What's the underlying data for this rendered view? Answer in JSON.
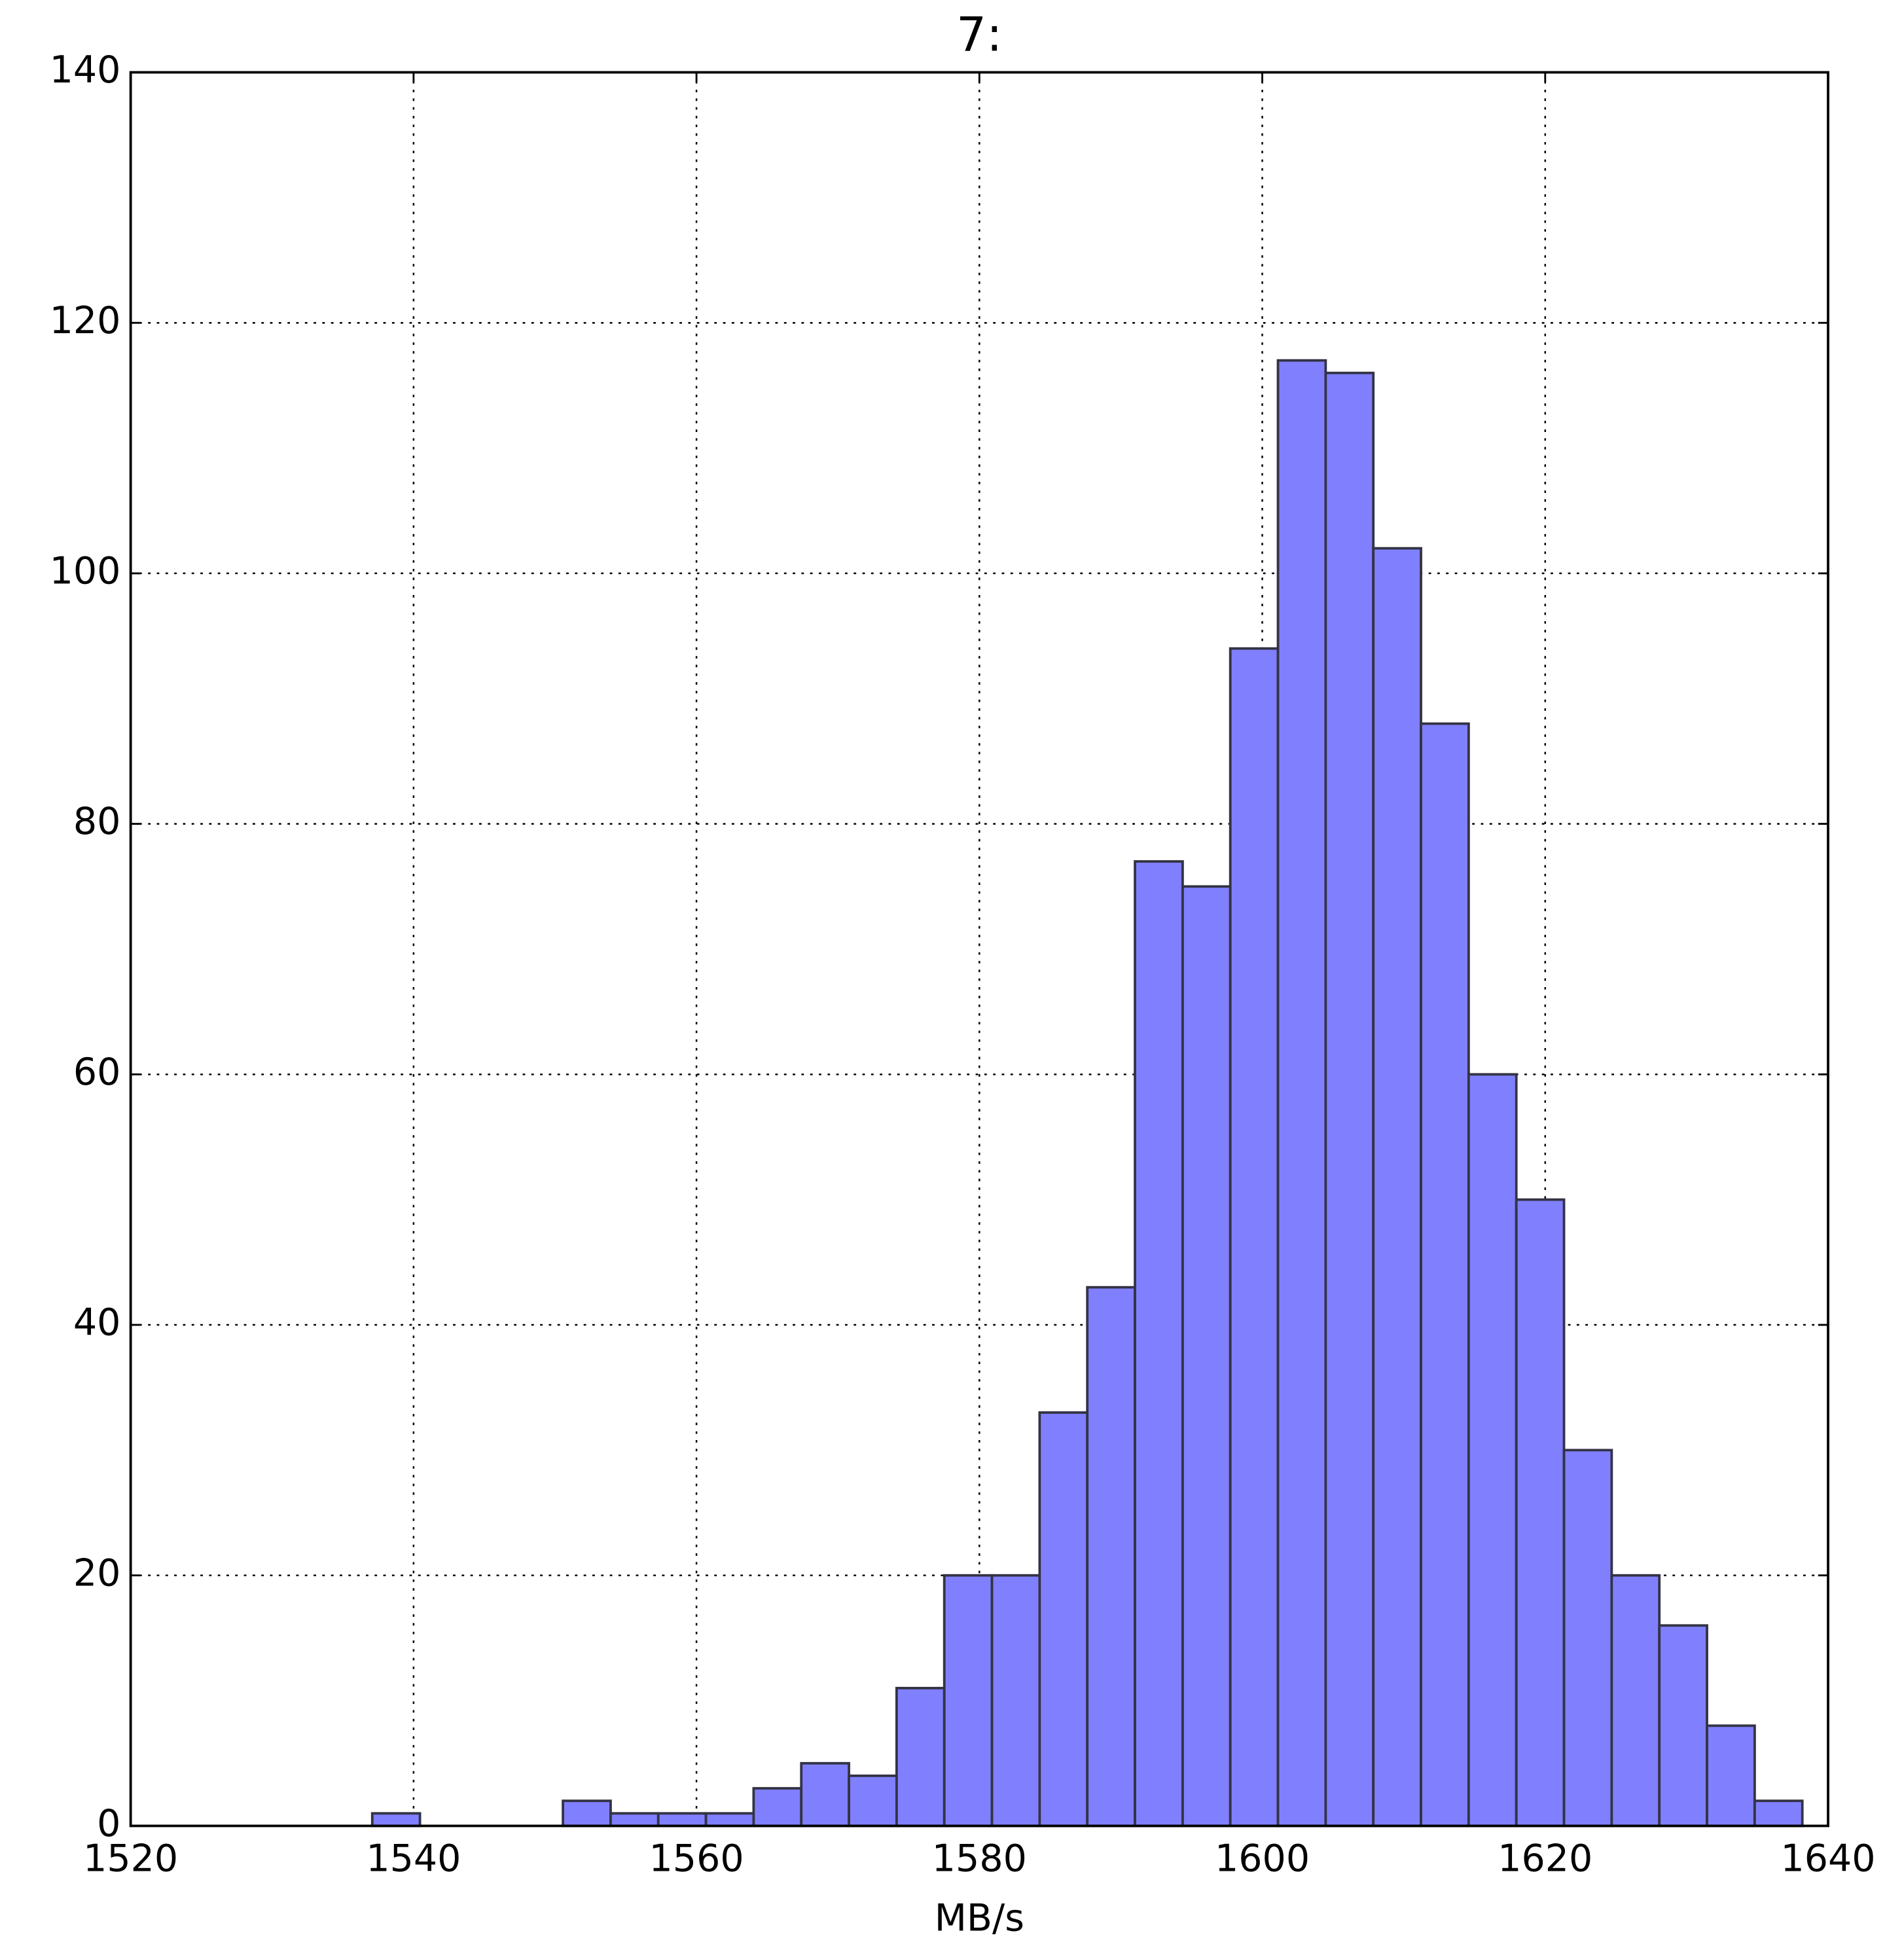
{
  "chart_data": {
    "type": "histogram",
    "title": "7:",
    "x_label": "MB/s",
    "bins": [
      1537.08,
      1540.45,
      1543.82,
      1547.19,
      1550.56,
      1553.93,
      1557.3,
      1560.67,
      1564.04,
      1567.41,
      1570.78,
      1574.15,
      1577.52,
      1580.89,
      1584.26,
      1587.63,
      1591.0,
      1594.37,
      1597.74,
      1601.11,
      1604.48,
      1607.85,
      1611.22,
      1614.59,
      1617.96,
      1621.33,
      1624.7,
      1628.07,
      1631.44,
      1634.81,
      1638.18
    ],
    "values": [
      1,
      0,
      0,
      0,
      2,
      1,
      1,
      1,
      3,
      5,
      4,
      11,
      20,
      20,
      33,
      43,
      77,
      75,
      94,
      117,
      116,
      102,
      88,
      60,
      50,
      30,
      20,
      16,
      8,
      2
    ],
    "color": "#8080ff",
    "edgecolor": "#333344",
    "xlim": [
      1520,
      1640
    ],
    "xticks": [
      1520,
      1540,
      1560,
      1580,
      1600,
      1620,
      1640
    ],
    "ylim": [
      0,
      140
    ],
    "yticks": [
      0,
      20,
      40,
      60,
      80,
      100,
      120,
      140
    ],
    "grid": true
  }
}
